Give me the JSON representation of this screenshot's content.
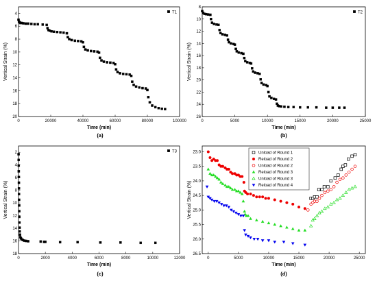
{
  "chart_data": [
    {
      "id": "a",
      "type": "scatter",
      "panel_label": "(a)",
      "xlabel": "Time (min)",
      "ylabel": "Vertical Strain (%)",
      "xlim": [
        0,
        100000
      ],
      "ylim": [
        20,
        3
      ],
      "y_inverted": true,
      "xticks": [
        0,
        20000,
        40000,
        60000,
        80000,
        100000
      ],
      "xtick_labels": [
        "0",
        "20000",
        "40000",
        "60000",
        "80000",
        "100000"
      ],
      "yticks": [
        4,
        6,
        8,
        10,
        12,
        14,
        16,
        18,
        20
      ],
      "ytick_labels": [
        "4",
        "6",
        "8",
        "10",
        "12",
        "14",
        "16",
        "18",
        "20"
      ],
      "legend_position": "top-right",
      "series": [
        {
          "name": "T1",
          "marker": "square-filled",
          "color": "#000000",
          "x": [
            0,
            300,
            700,
            1200,
            2000,
            3000,
            4500,
            6000,
            8000,
            10000,
            12000,
            15000,
            17500,
            18000,
            18600,
            19400,
            20500,
            22000,
            24000,
            26000,
            28000,
            30000,
            30600,
            31500,
            33000,
            35000,
            37000,
            39000,
            40000,
            40600,
            41500,
            43000,
            45000,
            47000,
            49000,
            50000,
            50600,
            51500,
            53000,
            55000,
            57000,
            59000,
            60000,
            60600,
            61500,
            63000,
            65000,
            67000,
            69000,
            70000,
            70600,
            71500,
            73000,
            75000,
            77000,
            79000,
            80000,
            80600,
            81500,
            83000,
            85000,
            87000,
            89000,
            91000
          ],
          "y": [
            5.0,
            5.3,
            5.4,
            5.5,
            5.5,
            5.55,
            5.6,
            5.6,
            5.65,
            5.7,
            5.7,
            5.75,
            5.8,
            6.3,
            6.6,
            6.7,
            6.8,
            6.85,
            6.9,
            6.95,
            7.0,
            7.1,
            7.7,
            8.0,
            8.15,
            8.25,
            8.3,
            8.35,
            8.5,
            9.2,
            9.6,
            9.75,
            9.85,
            9.9,
            9.95,
            10.1,
            10.9,
            11.3,
            11.5,
            11.6,
            11.65,
            11.7,
            11.9,
            12.7,
            13.1,
            13.3,
            13.4,
            13.45,
            13.5,
            13.7,
            14.6,
            15.1,
            15.35,
            15.5,
            15.6,
            15.65,
            15.9,
            17.0,
            17.8,
            18.3,
            18.55,
            18.7,
            18.8,
            18.85
          ]
        }
      ]
    },
    {
      "id": "b",
      "type": "scatter",
      "panel_label": "(b)",
      "xlabel": "Time (min)",
      "ylabel": "Vertical Strain (%)",
      "xlim": [
        0,
        25000
      ],
      "ylim": [
        26,
        8
      ],
      "y_inverted": true,
      "xticks": [
        0,
        5000,
        10000,
        15000,
        20000,
        25000
      ],
      "xtick_labels": [
        "0",
        "5000",
        "10000",
        "15000",
        "20000",
        "25000"
      ],
      "yticks": [
        8,
        10,
        12,
        14,
        16,
        18,
        20,
        22,
        24,
        26
      ],
      "ytick_labels": [
        "8",
        "10",
        "12",
        "14",
        "16",
        "18",
        "20",
        "22",
        "24",
        "26"
      ],
      "legend_position": "top-right",
      "series": [
        {
          "name": "T2",
          "marker": "square-filled",
          "color": "#000000",
          "x": [
            0,
            150,
            350,
            600,
            900,
            1250,
            1350,
            1500,
            1800,
            2200,
            2500,
            2650,
            2800,
            3100,
            3500,
            3800,
            3950,
            4100,
            4400,
            4800,
            5000,
            5150,
            5300,
            5600,
            6000,
            6300,
            6450,
            6600,
            6900,
            7300,
            7500,
            7650,
            7800,
            8100,
            8500,
            8800,
            8950,
            9100,
            9400,
            9800,
            10000,
            10150,
            10300,
            10600,
            11000,
            11300,
            11450,
            11600,
            11800,
            12100,
            12600,
            13200,
            14000,
            15000,
            16200,
            17500,
            19000,
            20000,
            21000,
            21800
          ],
          "y": [
            8.7,
            9.0,
            9.15,
            9.2,
            9.25,
            9.3,
            10.0,
            10.6,
            10.8,
            10.9,
            10.95,
            11.8,
            12.3,
            12.5,
            12.6,
            12.7,
            13.4,
            13.8,
            14.0,
            14.1,
            14.2,
            14.9,
            15.3,
            15.5,
            15.6,
            15.7,
            16.4,
            16.9,
            17.1,
            17.2,
            17.3,
            18.1,
            18.6,
            18.8,
            18.9,
            19.0,
            19.9,
            20.5,
            20.75,
            20.85,
            21.0,
            22.0,
            22.7,
            22.95,
            23.1,
            23.2,
            23.9,
            24.2,
            24.3,
            24.35,
            24.4,
            24.45,
            24.45,
            24.5,
            24.5,
            24.5,
            24.55,
            24.55,
            24.55,
            24.55
          ]
        }
      ]
    },
    {
      "id": "c",
      "type": "scatter",
      "panel_label": "(c)",
      "xlabel": "Time (min)",
      "ylabel": "Vertical Strain (%)",
      "xlim": [
        0,
        12000
      ],
      "ylim": [
        18,
        1
      ],
      "y_inverted": true,
      "xticks": [
        0,
        2000,
        4000,
        6000,
        8000,
        10000,
        12000
      ],
      "xtick_labels": [
        "0",
        "2000",
        "4000",
        "6000",
        "8000",
        "10000",
        "12000"
      ],
      "yticks": [
        2,
        4,
        6,
        8,
        10,
        12,
        14,
        16,
        18
      ],
      "ytick_labels": [
        "2",
        "4",
        "6",
        "8",
        "10",
        "12",
        "14",
        "16",
        "18"
      ],
      "legend_position": "top-right",
      "series": [
        {
          "name": "T3",
          "marker": "square-filled",
          "color": "#000000",
          "x": [
            5,
            10,
            15,
            20,
            25,
            30,
            35,
            40,
            45,
            50,
            55,
            60,
            70,
            80,
            90,
            110,
            140,
            180,
            240,
            320,
            430,
            560,
            720,
            1650,
            1900,
            2000,
            3100,
            4400,
            6100,
            7600,
            9100,
            10200
          ],
          "y": [
            2.3,
            3.2,
            4.1,
            5.0,
            5.9,
            6.8,
            7.7,
            8.6,
            9.5,
            10.4,
            11.3,
            12.2,
            13.1,
            13.9,
            14.5,
            15.0,
            15.4,
            15.6,
            15.75,
            15.85,
            15.95,
            16.0,
            16.05,
            16.1,
            16.15,
            16.15,
            16.2,
            16.2,
            16.25,
            16.25,
            16.3,
            16.3
          ]
        }
      ]
    },
    {
      "id": "d",
      "type": "scatter",
      "panel_label": "(d)",
      "xlabel": "Time (min)",
      "ylabel": "Vertical Strain (%)",
      "xlim": [
        -1000,
        26000
      ],
      "ylim": [
        26.5,
        22.8
      ],
      "y_inverted": true,
      "xticks": [
        0,
        5000,
        10000,
        15000,
        20000,
        25000
      ],
      "xtick_labels": [
        "0",
        "5000",
        "10000",
        "15000",
        "20000",
        "25000"
      ],
      "yticks": [
        23.0,
        23.5,
        24.0,
        24.5,
        25.0,
        25.5,
        26.0,
        26.5
      ],
      "ytick_labels": [
        "23.0",
        "23.5",
        "24.0",
        "24.5",
        "25.0",
        "25.5",
        "26.0",
        "26.5"
      ],
      "legend_position": "top-right",
      "series": [
        {
          "name": "Unload of Round 1",
          "marker": "square-open",
          "color": "#000000",
          "x": [
            17000,
            17300,
            17600,
            18000,
            18300,
            18800,
            19200,
            19800,
            20300,
            21000,
            21500,
            22000,
            22300,
            22700,
            23200,
            23800,
            24300
          ],
          "y": [
            24.6,
            24.6,
            24.55,
            24.55,
            24.3,
            24.3,
            24.2,
            24.2,
            24.0,
            23.9,
            23.8,
            23.6,
            23.5,
            23.45,
            23.25,
            23.15,
            23.1
          ]
        },
        {
          "name": "Reload of Round 2",
          "marker": "circle-filled",
          "color": "#ee0000",
          "x": [
            0,
            300,
            600,
            900,
            1200,
            1500,
            1800,
            2100,
            2400,
            2800,
            3100,
            3400,
            3700,
            4000,
            4400,
            4700,
            5000,
            5300,
            5600,
            5900,
            6000,
            6200,
            6500,
            7000,
            7500,
            8000,
            8500,
            9000,
            9500,
            10000,
            11000,
            12000,
            13000,
            14000,
            15000,
            16000
          ],
          "y": [
            23.0,
            23.2,
            23.3,
            23.25,
            23.3,
            23.3,
            23.45,
            23.5,
            23.5,
            23.55,
            23.6,
            23.6,
            23.7,
            23.75,
            23.75,
            23.8,
            23.8,
            23.85,
            23.85,
            24.05,
            24.35,
            24.4,
            24.45,
            24.45,
            24.5,
            24.55,
            24.55,
            24.55,
            24.6,
            24.6,
            24.65,
            24.7,
            24.75,
            24.8,
            24.9,
            24.95
          ]
        },
        {
          "name": "Unload of Round 2",
          "marker": "circle-open",
          "color": "#ee0000",
          "x": [
            16500,
            17000,
            17300,
            17600,
            18000,
            18400,
            18800,
            19300,
            19800,
            20300,
            20800,
            21300,
            21800,
            22300,
            22800,
            23300,
            23800,
            24300
          ],
          "y": [
            25.0,
            24.8,
            24.75,
            24.7,
            24.7,
            24.6,
            24.5,
            24.4,
            24.35,
            24.3,
            24.2,
            24.05,
            23.95,
            23.9,
            23.8,
            23.7,
            23.6,
            23.5
          ]
        },
        {
          "name": "Reload of Round 3",
          "marker": "triangle-up-filled",
          "color": "#22dd22",
          "x": [
            0,
            300,
            600,
            900,
            1200,
            1500,
            1800,
            2100,
            2400,
            2800,
            3100,
            3400,
            3700,
            4000,
            4400,
            4700,
            5000,
            5300,
            5600,
            5800,
            6000,
            6100,
            6300,
            6600,
            7000,
            8000,
            9000,
            10000,
            11000,
            12000,
            13000,
            14000,
            15000,
            16000
          ],
          "y": [
            23.6,
            23.75,
            23.8,
            23.8,
            23.85,
            23.9,
            23.95,
            24.05,
            24.1,
            24.15,
            24.2,
            24.2,
            24.25,
            24.3,
            24.3,
            24.35,
            24.35,
            24.4,
            24.45,
            24.7,
            25.05,
            25.15,
            25.2,
            25.2,
            25.3,
            25.35,
            25.4,
            25.45,
            25.5,
            25.55,
            25.6,
            25.65,
            25.7,
            25.7
          ]
        },
        {
          "name": "Unload of Round 3",
          "marker": "triangle-up-open",
          "color": "#22dd22",
          "x": [
            17000,
            17300,
            17600,
            18000,
            18400,
            18800,
            19300,
            19800,
            20300,
            20800,
            21300,
            21800,
            22300,
            22800,
            23300,
            23800,
            24300
          ],
          "y": [
            25.55,
            25.35,
            25.3,
            25.2,
            25.1,
            25.05,
            24.95,
            24.9,
            24.8,
            24.75,
            24.65,
            24.6,
            24.5,
            24.4,
            24.3,
            24.25,
            24.2
          ]
        },
        {
          "name": "Reload of Round 4",
          "marker": "triangle-down-filled",
          "color": "#0000ee",
          "x": [
            -200,
            0,
            300,
            600,
            1000,
            1400,
            1800,
            2200,
            2600,
            3000,
            3400,
            3800,
            4200,
            4600,
            5000,
            5400,
            5800,
            6000,
            6200,
            6600,
            7000,
            7600,
            8200,
            9000,
            10000,
            11000,
            12500,
            14000,
            16000
          ],
          "y": [
            24.2,
            24.55,
            24.6,
            24.65,
            24.7,
            24.7,
            24.75,
            24.8,
            24.85,
            24.85,
            24.9,
            25.0,
            25.05,
            25.1,
            25.15,
            25.2,
            25.2,
            25.7,
            25.85,
            25.9,
            25.95,
            26.0,
            26.0,
            26.05,
            26.05,
            26.1,
            26.1,
            26.15,
            26.2
          ]
        }
      ]
    }
  ]
}
